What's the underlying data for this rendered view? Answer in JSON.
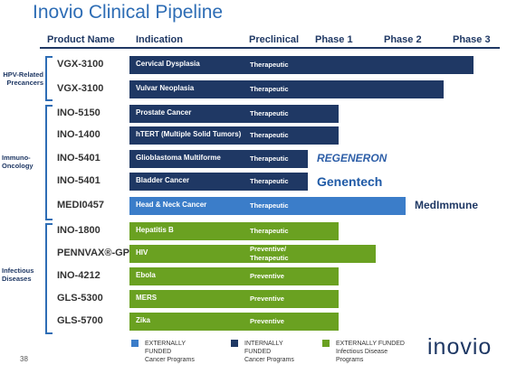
{
  "header": {
    "title": "Inovio Clinical Pipeline"
  },
  "columns": [
    "Product Name",
    "Indication",
    "Preclinical",
    "Phase 1",
    "Phase 2",
    "Phase 3"
  ],
  "groups": [
    {
      "label": "HPV-Related\nPrecancers"
    },
    {
      "label": "Immuno-\nOncology"
    },
    {
      "label": "Infectious\nDiseases"
    }
  ],
  "rows": [
    {
      "product": "VGX-3100",
      "indication": "Cervical Dysplasia",
      "status": "Therapeutic",
      "color": "#1f3864"
    },
    {
      "product": "VGX-3100",
      "indication": "Vulvar Neoplasia",
      "status": "Therapeutic",
      "color": "#1f3864"
    },
    {
      "product": "INO-5150",
      "indication": "Prostate Cancer",
      "status": "Therapeutic",
      "color": "#1f3864"
    },
    {
      "product": "INO-1400",
      "indication": "hTERT (Multiple Solid Tumors)",
      "status": "Therapeutic",
      "color": "#1f3864"
    },
    {
      "product": "INO-5401",
      "indication": "Glioblastoma Multiforme",
      "status": "Therapeutic",
      "color": "#1f3864",
      "partner": "REGENERON"
    },
    {
      "product": "INO-5401",
      "indication": "Bladder Cancer",
      "status": "Therapeutic",
      "color": "#1f3864",
      "partner": "Genentech"
    },
    {
      "product": "MEDI0457",
      "indication": "Head & Neck Cancer",
      "status": "Therapeutic",
      "color": "#3b7dc9",
      "partner": "MedImmune"
    },
    {
      "product": "INO-1800",
      "indication": "Hepatitis B",
      "status": "Therapeutic",
      "color": "#6aa121"
    },
    {
      "product": "PENNVAX®-GP",
      "indication": "HIV",
      "status": "Preventive/\nTherapeutic",
      "color": "#6aa121"
    },
    {
      "product": "INO-4212",
      "indication": "Ebola",
      "status": "Preventive",
      "color": "#6aa121"
    },
    {
      "product": "GLS-5300",
      "indication": "MERS",
      "status": "Preventive",
      "color": "#6aa121"
    },
    {
      "product": "GLS-5700",
      "indication": "Zika",
      "status": "Preventive",
      "color": "#6aa121"
    }
  ],
  "legend": [
    {
      "label": "EXTERNALLY\nFUNDED\nCancer Programs",
      "color": "#3b7dc9"
    },
    {
      "label": "INTERNALLY\nFUNDED\nCancer Programs",
      "color": "#1f3864"
    },
    {
      "label": "EXTERNALLY FUNDED\nInfectious Disease\nPrograms",
      "color": "#6aa121"
    }
  ],
  "page_number": "38",
  "logo": "inovio"
}
